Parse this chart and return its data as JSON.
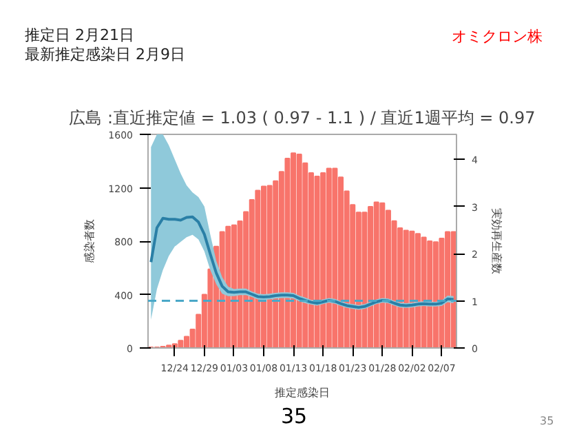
{
  "chart_data": {
    "type": "bar",
    "title": "広島 :直近推定値 = 1.03 ( 0.97 - 1.1 ) / 直近1週平均 = 0.97",
    "xlabel": "推定感染日",
    "ylabel": "感染者数",
    "y2label": "実効再生産数",
    "annotations": [
      "推定日  2月21日",
      "最新推定感染日  2月9日",
      "オミクロン株",
      "35",
      "35"
    ],
    "categories": [
      null,
      null,
      null,
      null,
      "12/24",
      null,
      null,
      null,
      null,
      "12/29",
      null,
      null,
      null,
      null,
      "01/03",
      null,
      null,
      null,
      null,
      "01/08",
      null,
      null,
      null,
      null,
      "01/13",
      null,
      null,
      null,
      null,
      "01/18",
      null,
      null,
      null,
      null,
      "01/23",
      null,
      null,
      null,
      null,
      "01/28",
      null,
      null,
      null,
      null,
      "02/02",
      null,
      null,
      null,
      null,
      "02/07",
      null,
      null
    ],
    "ylim": [
      0,
      1600
    ],
    "yticks": [
      0,
      400,
      800,
      1200,
      1600
    ],
    "y2lim": [
      0,
      4.53
    ],
    "y2ticks": [
      0,
      1,
      2,
      3,
      4
    ],
    "grid": false,
    "series": [
      {
        "color": "#f8746b",
        "values": [
          5,
          5,
          10,
          20,
          30,
          55,
          85,
          140,
          250,
          400,
          590,
          760,
          870,
          910,
          920,
          950,
          1020,
          1110,
          1180,
          1210,
          1215,
          1250,
          1320,
          1420,
          1460,
          1450,
          1384,
          1311,
          1285,
          1311,
          1344,
          1344,
          1279,
          1174,
          1072,
          1015,
          1015,
          1058,
          1092,
          1085,
          1030,
          951,
          898,
          880,
          873,
          856,
          828,
          800,
          793,
          821,
          870,
          870
        ]
      },
      {
        "type": "line",
        "axis": "y2",
        "color": "#2a7fa6",
        "line_style": "solid",
        "values": [
          1.82,
          2.55,
          2.75,
          2.73,
          2.73,
          2.71,
          2.77,
          2.78,
          2.67,
          2.41,
          1.99,
          1.59,
          1.31,
          1.19,
          1.18,
          1.19,
          1.19,
          1.14,
          1.09,
          1.08,
          1.09,
          1.11,
          1.12,
          1.12,
          1.11,
          1.05,
          1.01,
          0.97,
          0.95,
          0.98,
          1.01,
          0.99,
          0.94,
          0.9,
          0.88,
          0.86,
          0.88,
          0.93,
          0.98,
          1.01,
          1.0,
          0.95,
          0.91,
          0.9,
          0.91,
          0.93,
          0.94,
          0.93,
          0.93,
          0.95,
          1.04,
          1.03
        ],
        "lower": [
          0.6,
          1.25,
          1.65,
          1.95,
          2.15,
          2.25,
          2.35,
          2.4,
          2.3,
          2.05,
          1.65,
          1.35,
          1.15,
          1.1,
          1.1,
          1.12,
          1.12,
          1.08,
          1.03,
          1.02,
          1.03,
          1.05,
          1.06,
          1.06,
          1.05,
          0.99,
          0.95,
          0.92,
          0.9,
          0.93,
          0.96,
          0.94,
          0.89,
          0.85,
          0.83,
          0.81,
          0.83,
          0.88,
          0.93,
          0.96,
          0.95,
          0.9,
          0.86,
          0.85,
          0.86,
          0.88,
          0.89,
          0.88,
          0.88,
          0.89,
          0.97,
          0.95
        ],
        "upper": [
          4.26,
          4.53,
          4.53,
          4.3,
          4.0,
          3.7,
          3.45,
          3.3,
          3.2,
          3.0,
          2.4,
          1.85,
          1.5,
          1.3,
          1.25,
          1.26,
          1.26,
          1.2,
          1.15,
          1.14,
          1.15,
          1.17,
          1.18,
          1.18,
          1.17,
          1.11,
          1.07,
          1.02,
          1.0,
          1.03,
          1.06,
          1.04,
          0.99,
          0.95,
          0.93,
          0.91,
          0.93,
          0.98,
          1.03,
          1.06,
          1.05,
          1.0,
          0.96,
          0.95,
          0.96,
          0.98,
          0.99,
          0.98,
          0.98,
          1.01,
          1.11,
          1.1
        ]
      }
    ],
    "ref_lines": [
      {
        "axis": "y2",
        "value": 1,
        "label": null,
        "color": "#4aa8c8",
        "line_style": "dashed"
      }
    ]
  }
}
